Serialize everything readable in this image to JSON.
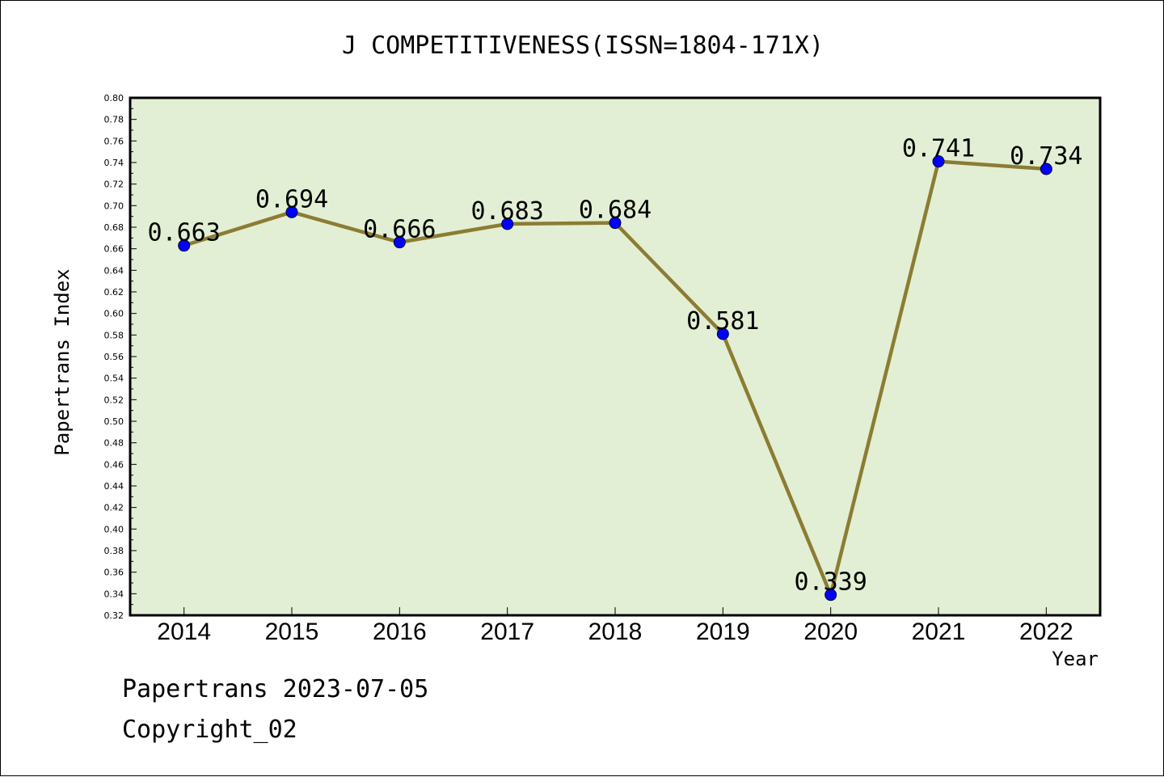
{
  "chart_data": {
    "type": "line",
    "title": "J COMPETITIVENESS(ISSN=1804-171X)",
    "xlabel": "Year",
    "ylabel": "Papertrans Index",
    "categories": [
      "2014",
      "2015",
      "2016",
      "2017",
      "2018",
      "2019",
      "2020",
      "2021",
      "2022"
    ],
    "values": [
      0.663,
      0.694,
      0.666,
      0.683,
      0.684,
      0.581,
      0.339,
      0.741,
      0.734
    ],
    "data_labels": [
      "0.663",
      "0.694",
      "0.666",
      "0.683",
      "0.684",
      "0.581",
      "0.339",
      "0.741",
      "0.734"
    ],
    "ylim": [
      0.32,
      0.8
    ],
    "yticks": [
      "0.32",
      "0.34",
      "0.36",
      "0.38",
      "0.40",
      "0.42",
      "0.44",
      "0.46",
      "0.48",
      "0.50",
      "0.52",
      "0.54",
      "0.56",
      "0.58",
      "0.60",
      "0.62",
      "0.64",
      "0.66",
      "0.68",
      "0.70",
      "0.72",
      "0.74",
      "0.76",
      "0.78",
      "0.80"
    ],
    "grid": false,
    "colors": {
      "plot_background": "#e2efd4",
      "line": "#8c7c33",
      "marker": "#0000ff"
    }
  },
  "footer": {
    "line1": "Papertrans 2023-07-05",
    "line2": "Copyright_02"
  }
}
